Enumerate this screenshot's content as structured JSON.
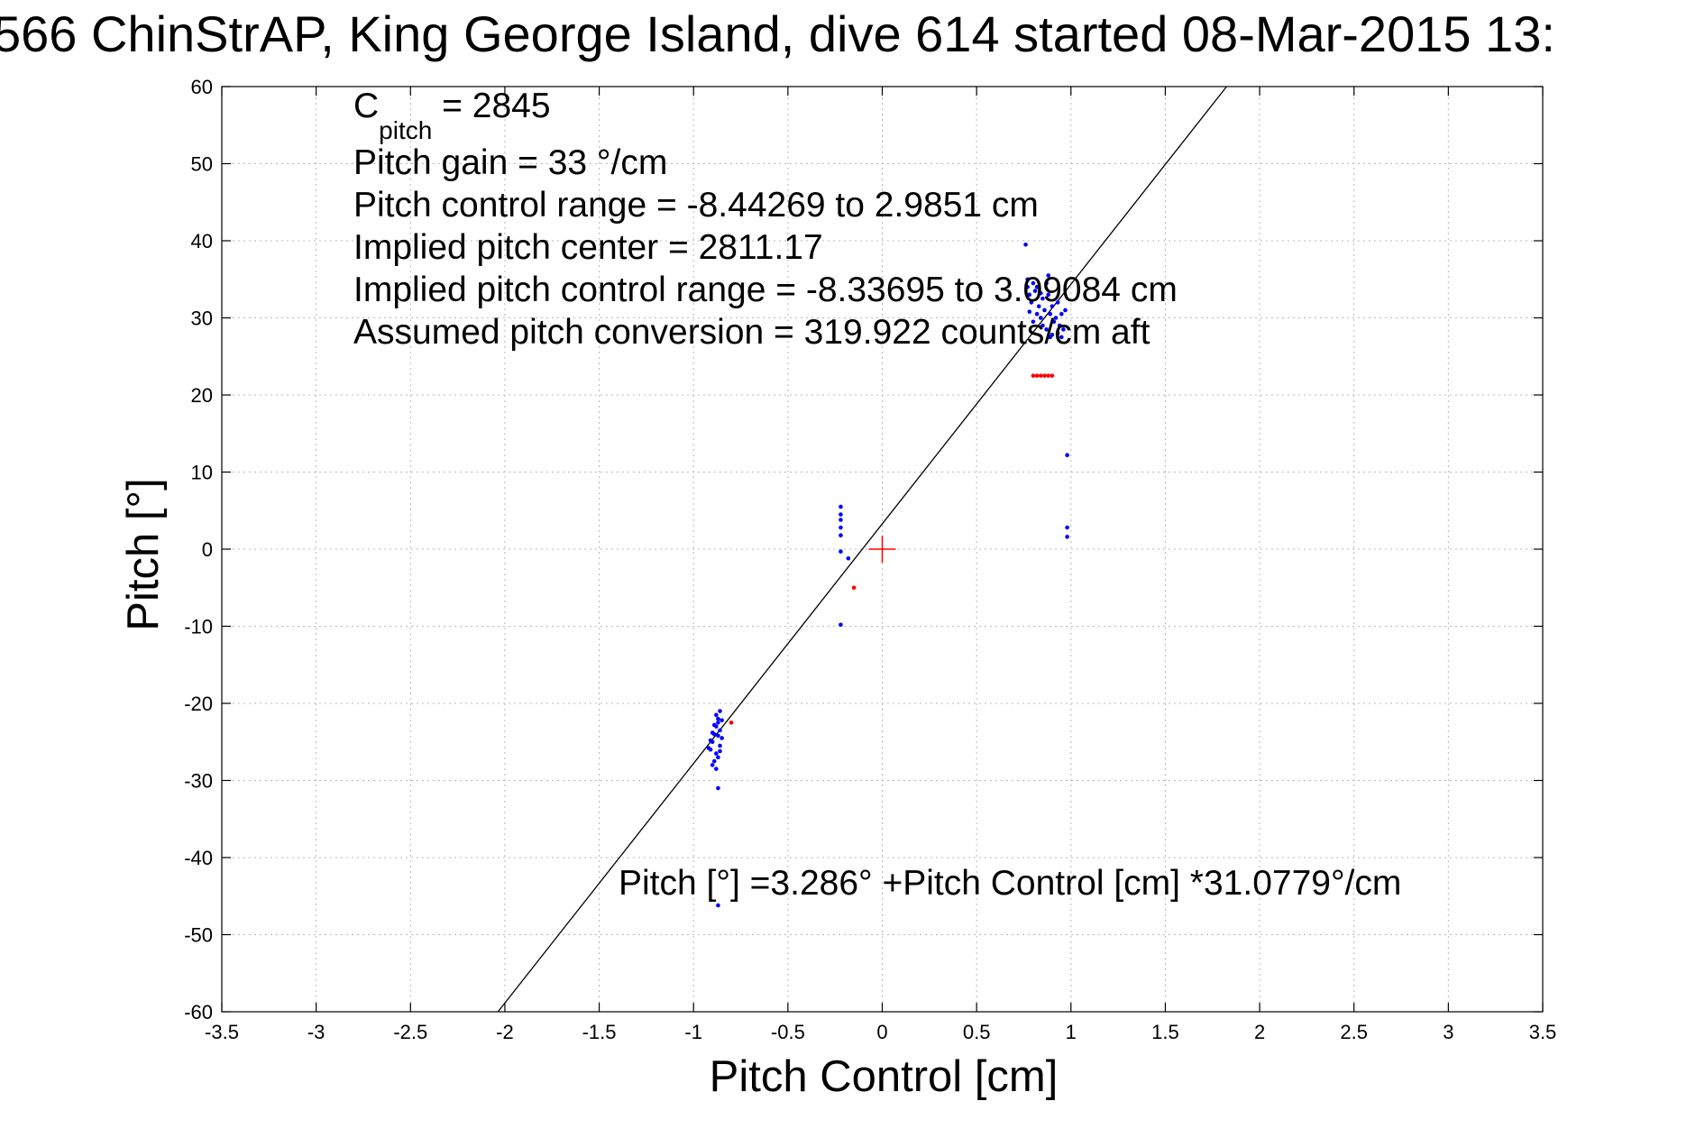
{
  "chart_data": {
    "type": "scatter",
    "title": "566 ChinStrAP, King George Island, dive 614 started 08-Mar-2015 13:",
    "xlabel": "Pitch Control [cm]",
    "ylabel": "Pitch [°]",
    "xlim": [
      -3.5,
      3.5
    ],
    "ylim": [
      -60,
      60
    ],
    "grid": true,
    "x_ticks": [
      "-3.5",
      "-3",
      "-2.5",
      "-2",
      "-1.5",
      "-1",
      "-0.5",
      "0",
      "0.5",
      "1",
      "1.5",
      "2",
      "2.5",
      "3",
      "3.5"
    ],
    "y_ticks": [
      "60",
      "50",
      "40",
      "30",
      "20",
      "10",
      "0",
      "-10",
      "-20",
      "-30",
      "-40",
      "-50",
      "-60"
    ],
    "annotations": {
      "c_pitch_main": "C",
      "c_pitch_sub": "pitch",
      "c_pitch_value": " = 2845",
      "pitch_gain": "Pitch gain = 33 °/cm",
      "pitch_control_range": "Pitch control range = -8.44269 to 2.9851 cm",
      "implied_pitch_center": "Implied pitch center = 2811.17",
      "implied_pitch_control_range": "Implied pitch control range = -8.33695 to 3.09084 cm",
      "assumed_pitch_conversion": "Assumed pitch conversion = 319.922 counts/cm aft",
      "fit_equation": "Pitch [°] =3.286° +Pitch Control [cm] *31.0779°/cm"
    },
    "fit_line": {
      "intercept": 3.286,
      "slope": 31.0779
    },
    "center_marker": {
      "x": 0,
      "y": 0,
      "color": "#ff0000"
    },
    "series": [
      {
        "color": "#0000ff",
        "points": [
          [
            0.76,
            39.5
          ],
          [
            0.77,
            35.0
          ],
          [
            0.77,
            34.0
          ],
          [
            0.78,
            33.0
          ],
          [
            0.79,
            32.0
          ],
          [
            0.8,
            34.5
          ],
          [
            0.81,
            33.5
          ],
          [
            0.82,
            34.0
          ],
          [
            0.83,
            31.5
          ],
          [
            0.84,
            30.0
          ],
          [
            0.85,
            32.5
          ],
          [
            0.86,
            31.0
          ],
          [
            0.87,
            34.5
          ],
          [
            0.88,
            33.0
          ],
          [
            0.89,
            30.5
          ],
          [
            0.9,
            31.5
          ],
          [
            0.91,
            29.5
          ],
          [
            0.92,
            30.0
          ],
          [
            0.93,
            28.0
          ],
          [
            0.94,
            29.0
          ],
          [
            0.95,
            30.5
          ],
          [
            0.96,
            28.5
          ],
          [
            0.97,
            31.0
          ],
          [
            0.85,
            29.0
          ],
          [
            0.87,
            28.5
          ],
          [
            0.89,
            27.5
          ],
          [
            0.82,
            30.5
          ],
          [
            0.8,
            29.5
          ],
          [
            0.78,
            30.8
          ],
          [
            0.93,
            32.0
          ],
          [
            0.88,
            35.5
          ],
          [
            0.84,
            33.2
          ],
          [
            0.9,
            27.8
          ],
          [
            0.95,
            27.5
          ],
          [
            0.98,
            12.2
          ],
          [
            0.98,
            2.8
          ],
          [
            0.98,
            1.6
          ],
          [
            -0.22,
            5.5
          ],
          [
            -0.22,
            4.5
          ],
          [
            -0.22,
            3.8
          ],
          [
            -0.22,
            2.8
          ],
          [
            -0.22,
            1.8
          ],
          [
            -0.22,
            -0.3
          ],
          [
            -0.22,
            -9.8
          ],
          [
            -0.18,
            -1.2
          ],
          [
            -0.86,
            -21.0
          ],
          [
            -0.87,
            -22.0
          ],
          [
            -0.88,
            -23.0
          ],
          [
            -0.89,
            -24.0
          ],
          [
            -0.9,
            -25.0
          ],
          [
            -0.91,
            -26.0
          ],
          [
            -0.88,
            -26.5
          ],
          [
            -0.87,
            -27.0
          ],
          [
            -0.89,
            -27.5
          ],
          [
            -0.9,
            -28.0
          ],
          [
            -0.86,
            -25.5
          ],
          [
            -0.85,
            -24.5
          ],
          [
            -0.86,
            -23.5
          ],
          [
            -0.87,
            -22.5
          ],
          [
            -0.88,
            -21.5
          ],
          [
            -0.89,
            -22.8
          ],
          [
            -0.9,
            -23.8
          ],
          [
            -0.91,
            -24.8
          ],
          [
            -0.92,
            -25.8
          ],
          [
            -0.87,
            -24.2
          ],
          [
            -0.86,
            -26.2
          ],
          [
            -0.85,
            -22.2
          ],
          [
            -0.88,
            -28.5
          ],
          [
            -0.87,
            -31.0
          ],
          [
            -0.87,
            -46.2
          ]
        ]
      },
      {
        "color": "#ff0000",
        "points": [
          [
            0.8,
            22.5
          ],
          [
            0.82,
            22.5
          ],
          [
            0.84,
            22.5
          ],
          [
            0.86,
            22.5
          ],
          [
            0.88,
            22.5
          ],
          [
            0.9,
            22.5
          ],
          [
            -0.15,
            -5.0
          ],
          [
            -0.8,
            -22.5
          ]
        ]
      }
    ]
  }
}
